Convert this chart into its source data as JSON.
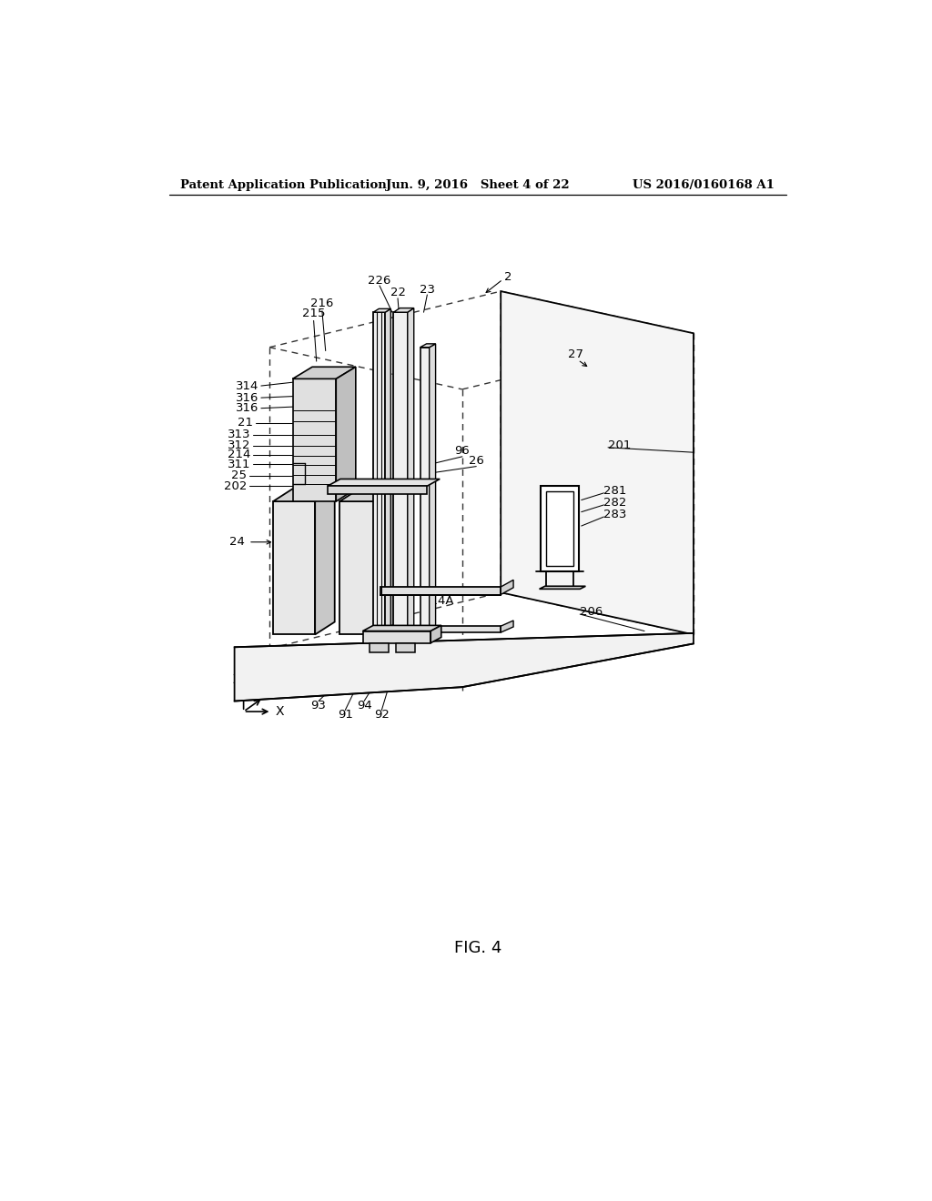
{
  "bg_color": "#ffffff",
  "header_left": "Patent Application Publication",
  "header_center": "Jun. 9, 2016   Sheet 4 of 22",
  "header_right": "US 2016/0160168 A1",
  "figure_label": "FIG. 4",
  "lw_main": 1.4,
  "lw_thin": 0.9,
  "lw_thick": 2.0
}
